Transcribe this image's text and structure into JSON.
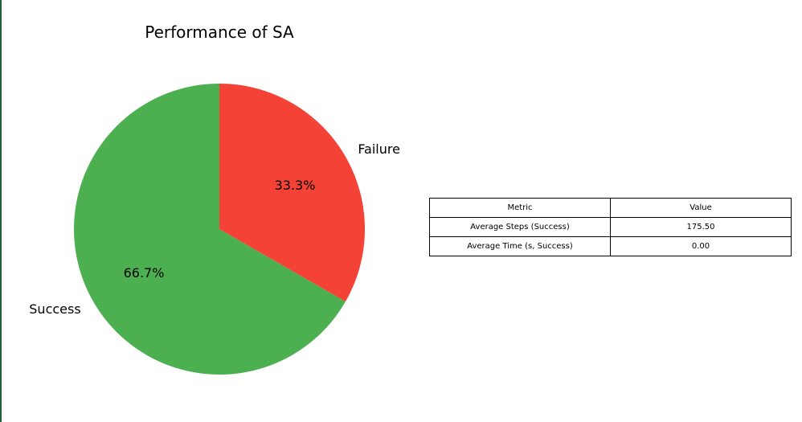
{
  "chart_data": [
    {
      "type": "pie",
      "title": "Performance of SA",
      "slices": [
        {
          "label": "Success",
          "value": 66.7,
          "pct_label": "66.7%",
          "color": "#4caf50"
        },
        {
          "label": "Failure",
          "value": 33.3,
          "pct_label": "33.3%",
          "color": "#f44336"
        }
      ]
    },
    {
      "type": "table",
      "columns": [
        "Metric",
        "Value"
      ],
      "rows": [
        {
          "metric": "Average Steps (Success)",
          "value": "175.50"
        },
        {
          "metric": "Average Time (s, Success)",
          "value": "0.00"
        }
      ]
    }
  ]
}
